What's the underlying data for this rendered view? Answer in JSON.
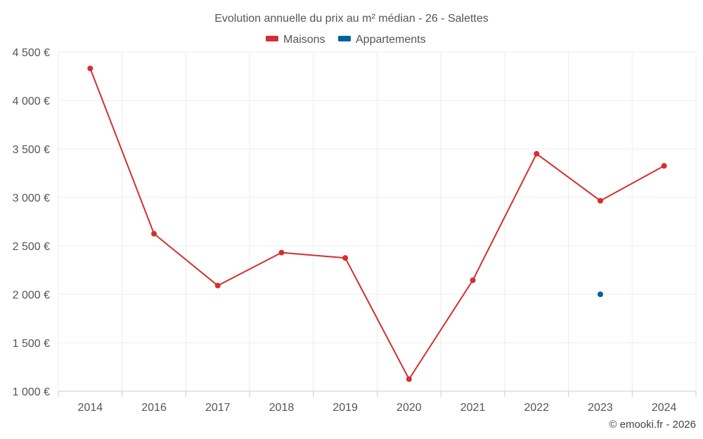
{
  "chart_data": {
    "type": "line",
    "title": "Evolution annuelle du prix au m² médian - 26 - Salettes",
    "categories": [
      "2014",
      "2016",
      "2017",
      "2018",
      "2019",
      "2020",
      "2021",
      "2022",
      "2023",
      "2024"
    ],
    "series": [
      {
        "name": "Maisons",
        "color": "#d32f2f",
        "values": [
          4330,
          2625,
          2090,
          2430,
          2375,
          1125,
          2145,
          3450,
          2965,
          3325
        ]
      },
      {
        "name": "Appartements",
        "color": "#00629b",
        "values": [
          null,
          null,
          null,
          null,
          null,
          null,
          null,
          null,
          2000,
          null
        ]
      }
    ],
    "ylim": [
      1000,
      4500
    ],
    "yticks": [
      1000,
      1500,
      2000,
      2500,
      3000,
      3500,
      4000,
      4500
    ],
    "ytick_labels": [
      "1 000 €",
      "1 500 €",
      "2 000 €",
      "2 500 €",
      "3 000 €",
      "3 500 €",
      "4 000 €",
      "4 500 €"
    ],
    "xlabel": "",
    "ylabel": "",
    "grid": true,
    "legend": "top-center"
  },
  "credit": "© emooki.fr - 2026"
}
